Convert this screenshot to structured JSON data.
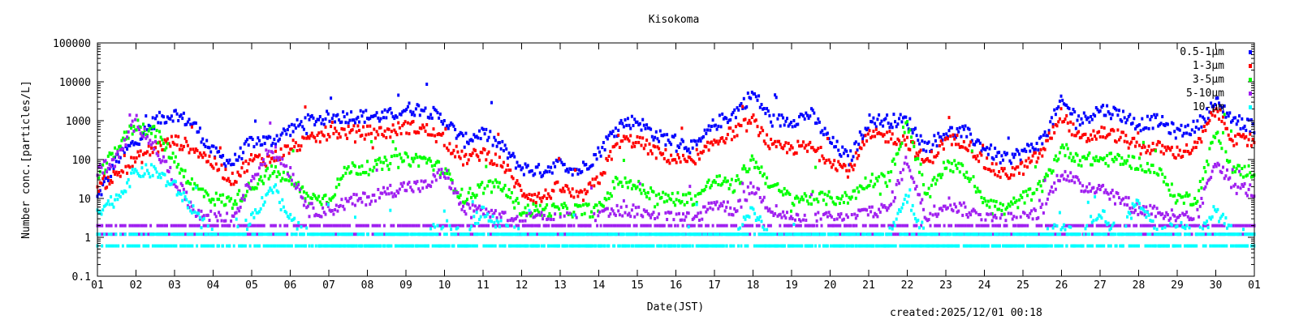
{
  "chart_data": {
    "type": "scatter",
    "title": "Kisokoma",
    "xlabel": "Date(JST)",
    "ylabel": "Number conc.[particles/L]",
    "yscale": "log",
    "ylim": [
      0.1,
      100000
    ],
    "xlim": [
      0,
      30
    ],
    "x_step_days": 0.5,
    "xtick_labels": [
      "01",
      "02",
      "03",
      "04",
      "05",
      "06",
      "07",
      "08",
      "09",
      "10",
      "11",
      "12",
      "13",
      "14",
      "15",
      "16",
      "17",
      "18",
      "19",
      "20",
      "21",
      "22",
      "23",
      "24",
      "25",
      "26",
      "27",
      "28",
      "29",
      "30",
      "01"
    ],
    "ytick_labels": [
      "0.1",
      "1",
      "10",
      "100",
      "1000",
      "10000",
      "100000"
    ],
    "legend_position": "top-right",
    "series": [
      {
        "name": "0.5-1μm",
        "color": "#0000ff",
        "floors": [],
        "values": [
          10,
          100,
          300,
          1000,
          1500,
          800,
          150,
          80,
          300,
          300,
          600,
          1000,
          1200,
          1300,
          1300,
          1300,
          2000,
          2000,
          1000,
          300,
          500,
          200,
          60,
          50,
          80,
          50,
          150,
          800,
          1000,
          400,
          300,
          200,
          800,
          1500,
          5000,
          1000,
          1000,
          1500,
          300,
          100,
          1000,
          1000,
          1000,
          200,
          500,
          500,
          200,
          100,
          150,
          300,
          3000,
          1000,
          2000,
          1500,
          800,
          1000,
          500,
          700,
          3000,
          1000,
          700
        ]
      },
      {
        "name": "1-3μm",
        "color": "#ff0000",
        "floors": [],
        "values": [
          20,
          40,
          100,
          200,
          300,
          200,
          80,
          30,
          100,
          100,
          200,
          300,
          500,
          500,
          500,
          500,
          700,
          600,
          300,
          100,
          150,
          80,
          15,
          10,
          20,
          10,
          30,
          300,
          300,
          150,
          100,
          80,
          300,
          500,
          1000,
          200,
          200,
          200,
          100,
          50,
          400,
          400,
          300,
          80,
          300,
          300,
          80,
          40,
          60,
          150,
          1500,
          300,
          500,
          400,
          200,
          200,
          150,
          200,
          2000,
          300,
          300
        ]
      },
      {
        "name": "3-5μm",
        "color": "#00ff00",
        "floors": [],
        "values": [
          30,
          200,
          800,
          500,
          100,
          20,
          10,
          8,
          20,
          50,
          30,
          10,
          10,
          60,
          60,
          80,
          100,
          100,
          50,
          10,
          20,
          20,
          5,
          5,
          5,
          5,
          5,
          30,
          20,
          10,
          10,
          10,
          30,
          20,
          100,
          20,
          10,
          10,
          10,
          10,
          30,
          30,
          1000,
          10,
          80,
          50,
          10,
          5,
          10,
          20,
          200,
          100,
          100,
          100,
          80,
          50,
          10,
          10,
          500,
          50,
          50
        ]
      },
      {
        "name": "5-10μm",
        "color": "#a020f0",
        "floors": [
          1.2,
          2
        ],
        "values": [
          50,
          100,
          1000,
          200,
          30,
          5,
          3,
          3,
          30,
          200,
          50,
          5,
          5,
          8,
          10,
          15,
          20,
          20,
          50,
          5,
          5,
          3,
          3,
          3,
          3,
          3,
          3,
          5,
          5,
          3,
          3,
          3,
          8,
          5,
          20,
          5,
          3,
          3,
          3,
          3,
          5,
          5,
          100,
          3,
          8,
          5,
          3,
          3,
          3,
          5,
          50,
          20,
          20,
          10,
          5,
          5,
          3,
          3,
          100,
          20,
          15
        ]
      },
      {
        "name": "10-μm",
        "color": "#00ffff",
        "floors": [
          0.6,
          1.2
        ],
        "values": [
          5,
          10,
          50,
          50,
          20,
          5,
          1,
          1,
          3,
          20,
          3,
          1,
          1,
          1,
          1,
          1,
          1,
          1,
          2,
          1,
          5,
          2,
          1,
          1,
          1,
          1,
          1,
          1,
          1,
          1,
          1,
          1,
          1,
          1,
          5,
          1,
          1,
          1,
          1,
          1,
          1,
          1,
          10,
          1,
          1,
          1,
          1,
          1,
          1,
          1,
          2,
          1,
          5,
          1,
          10,
          1,
          2,
          1,
          5,
          1,
          1
        ]
      }
    ]
  },
  "footer": {
    "created": "created:2025/12/01 00:18"
  }
}
